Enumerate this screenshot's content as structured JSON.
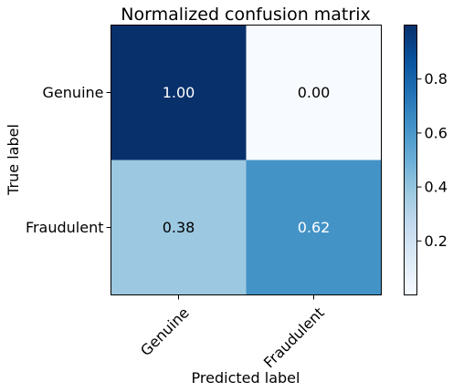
{
  "chart_data": {
    "type": "heatmap",
    "title": "Normalized confusion matrix",
    "xlabel": "Predicted label",
    "ylabel": "True label",
    "x_categories": [
      "Genuine",
      "Fraudulent"
    ],
    "y_categories": [
      "Genuine",
      "Fraudulent"
    ],
    "values": [
      [
        1.0,
        0.0
      ],
      [
        0.38,
        0.62
      ]
    ],
    "cell_labels": [
      [
        "1.00",
        "0.00"
      ],
      [
        "0.38",
        "0.62"
      ]
    ],
    "colormap": "Blues",
    "colorbar": {
      "range": [
        0,
        1
      ],
      "ticks": [
        0.2,
        0.4,
        0.6,
        0.8
      ],
      "tick_labels": [
        "0.2",
        "0.4",
        "0.6",
        "0.8"
      ]
    },
    "text_colors": {
      "light": "#ffffff",
      "dark": "#000000"
    },
    "grid": false
  }
}
